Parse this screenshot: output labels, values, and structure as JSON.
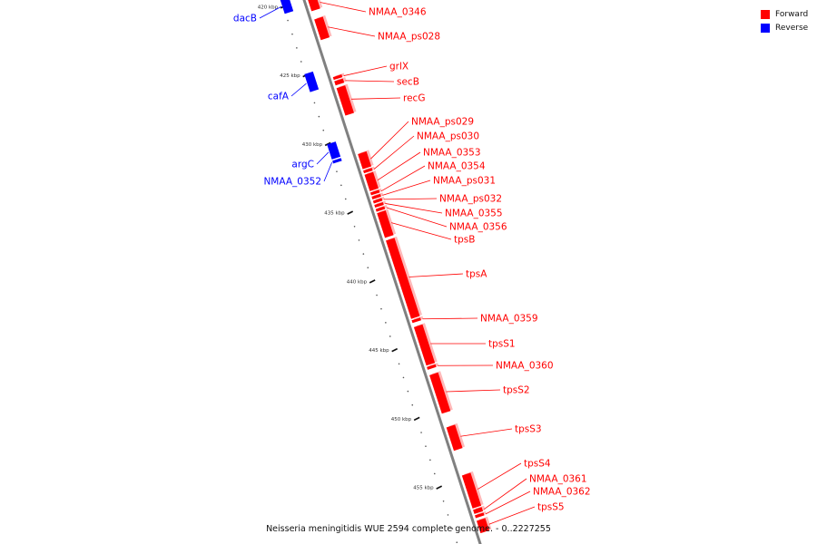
{
  "caption": "Neisseria meningitidis WUE 2594 complete genome. - 0..2227255",
  "legend": [
    {
      "label": "Forward",
      "color": "#ff0000"
    },
    {
      "label": "Reverse",
      "color": "#0000ff"
    }
  ],
  "colors": {
    "forward": "#ff0000",
    "reverse": "#0000ff",
    "backbone": "#808080"
  },
  "ticks": [
    {
      "kbp": 420,
      "label": "420 kbp"
    },
    {
      "kbp": 425,
      "label": "425 kbp"
    },
    {
      "kbp": 430,
      "label": "430 kbp"
    },
    {
      "kbp": 435,
      "label": "435 kbp"
    },
    {
      "kbp": 440,
      "label": "440 kbp"
    },
    {
      "kbp": 445,
      "label": "445 kbp"
    },
    {
      "kbp": 450,
      "label": "450 kbp"
    },
    {
      "kbp": 455,
      "label": "455 kbp"
    }
  ],
  "features": [
    {
      "name": "dacB",
      "strand": "reverse",
      "start": 419.4,
      "end": 420.5
    },
    {
      "name": "NMAA_0346",
      "strand": "forward",
      "start": 420.0,
      "end": 420.9
    },
    {
      "name": "NMAA_ps028",
      "strand": "forward",
      "start": 421.5,
      "end": 423.0
    },
    {
      "name": "cafA",
      "strand": "reverse",
      "start": 424.9,
      "end": 426.2
    },
    {
      "name": "grlX",
      "strand": "forward",
      "start": 425.7,
      "end": 425.9
    },
    {
      "name": "secB",
      "strand": "forward",
      "start": 426.0,
      "end": 426.3
    },
    {
      "name": "recG",
      "strand": "forward",
      "start": 426.5,
      "end": 428.5
    },
    {
      "name": "argC",
      "strand": "reverse",
      "start": 430.0,
      "end": 431.1
    },
    {
      "name": "NMAA_0352",
      "strand": "reverse",
      "start": 431.2,
      "end": 431.4
    },
    {
      "name": "NMAA_ps029",
      "strand": "forward",
      "start": 431.3,
      "end": 432.4
    },
    {
      "name": "NMAA_ps030",
      "strand": "forward",
      "start": 432.5,
      "end": 432.7
    },
    {
      "name": "NMAA_0353",
      "strand": "forward",
      "start": 432.8,
      "end": 434.0
    },
    {
      "name": "NMAA_0354",
      "strand": "forward",
      "start": 434.1,
      "end": 434.3
    },
    {
      "name": "NMAA_ps031",
      "strand": "forward",
      "start": 434.4,
      "end": 434.6
    },
    {
      "name": "NMAA_ps032",
      "strand": "forward",
      "start": 434.7,
      "end": 434.9
    },
    {
      "name": "NMAA_0355",
      "strand": "forward",
      "start": 435.0,
      "end": 435.2
    },
    {
      "name": "NMAA_0356",
      "strand": "forward",
      "start": 435.3,
      "end": 435.5
    },
    {
      "name": "tpsB",
      "strand": "forward",
      "start": 435.6,
      "end": 437.4
    },
    {
      "name": "tpsA",
      "strand": "forward",
      "start": 437.6,
      "end": 443.3
    },
    {
      "name": "NMAA_0359",
      "strand": "forward",
      "start": 443.4,
      "end": 443.6
    },
    {
      "name": "tpsS1",
      "strand": "forward",
      "start": 443.9,
      "end": 446.7
    },
    {
      "name": "NMAA_0360",
      "strand": "forward",
      "start": 446.8,
      "end": 447.0
    },
    {
      "name": "tpsS2",
      "strand": "forward",
      "start": 447.4,
      "end": 450.2
    },
    {
      "name": "tpsS3",
      "strand": "forward",
      "start": 451.2,
      "end": 452.9
    },
    {
      "name": "tpsS4",
      "strand": "forward",
      "start": 454.7,
      "end": 457.1
    },
    {
      "name": "NMAA_0361",
      "strand": "forward",
      "start": 457.2,
      "end": 457.5
    },
    {
      "name": "NMAA_0362",
      "strand": "forward",
      "start": 457.6,
      "end": 457.8
    },
    {
      "name": "tpsS5",
      "strand": "forward",
      "start": 458.0,
      "end": 458.9
    }
  ]
}
